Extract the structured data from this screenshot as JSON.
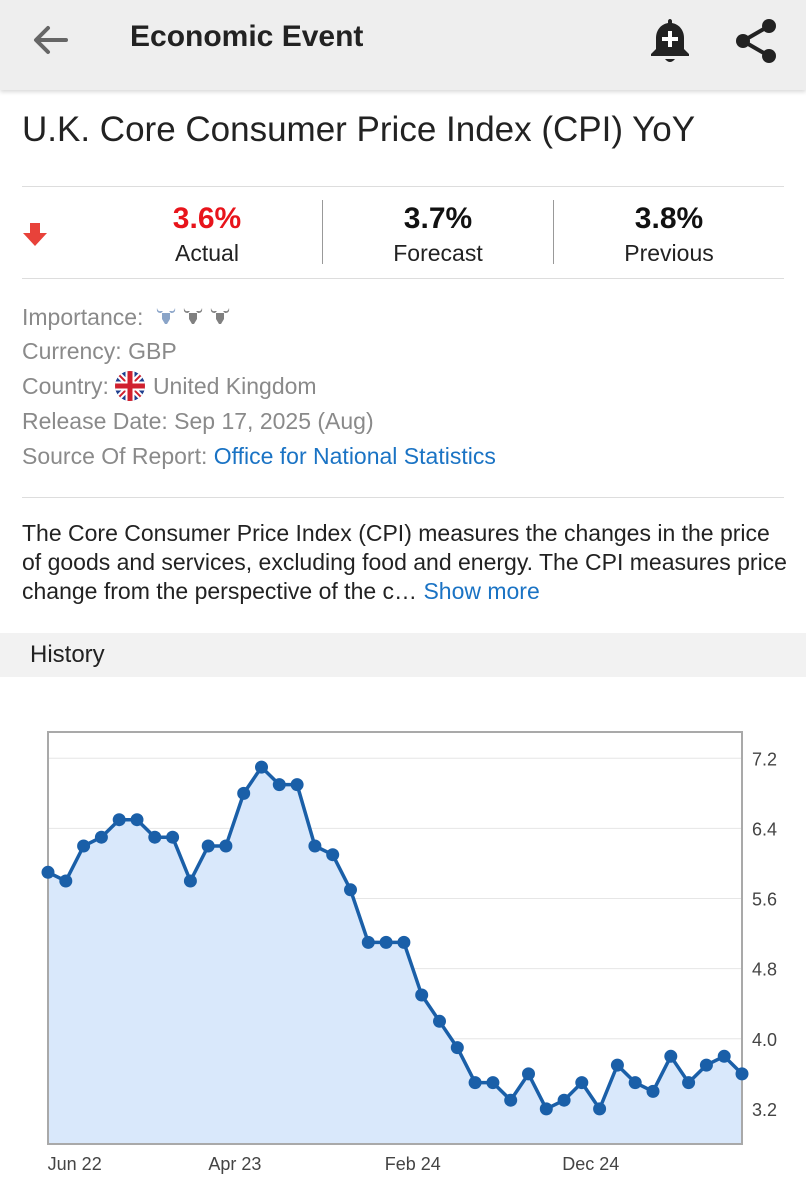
{
  "appbar": {
    "title": "Economic Event"
  },
  "event": {
    "title": "U.K. Core Consumer Price Index (CPI) YoY"
  },
  "stats": {
    "actual": {
      "value": "3.6%",
      "label": "Actual",
      "color": "#e8141b"
    },
    "forecast": {
      "value": "3.7%",
      "label": "Forecast"
    },
    "previous": {
      "value": "3.8%",
      "label": "Previous"
    },
    "direction_color": "#e8423a"
  },
  "info": {
    "importance_label": "Importance:",
    "importance_level": 1,
    "currency_label": "Currency:",
    "currency_value": "GBP",
    "country_label": "Country:",
    "country_value": "United Kingdom",
    "release_label": "Release Date:",
    "release_value": "Sep 17, 2025 (Aug)",
    "source_label": "Source Of Report:",
    "source_value": "Office for National Statistics"
  },
  "description": {
    "text": "The Core Consumer Price Index (CPI) measures the changes in the price of goods and services, excluding food and energy. The CPI measures price change from the perspective of the c…",
    "show_more": "Show more"
  },
  "history": {
    "label": "History"
  },
  "colors": {
    "line": "#1a5fa8",
    "fill": "#d9e8fb",
    "link": "#1a73c4"
  },
  "chart_data": {
    "type": "area",
    "x_tick_labels": [
      "Jun 22",
      "Apr 23",
      "Feb 24",
      "Dec 24"
    ],
    "y_tick_labels": [
      "7.2",
      "6.4",
      "5.6",
      "4.8",
      "4.0",
      "3.2"
    ],
    "ylim": [
      2.8,
      7.5
    ],
    "y_axis_position": "right",
    "grid": true,
    "series": [
      {
        "values": [
          5.9,
          5.8,
          6.2,
          6.3,
          6.5,
          6.5,
          6.3,
          6.3,
          5.8,
          6.2,
          6.2,
          6.8,
          7.1,
          6.9,
          6.9,
          6.2,
          6.1,
          5.7,
          5.1,
          5.1,
          5.1,
          4.5,
          4.2,
          3.9,
          3.5,
          3.5,
          3.3,
          3.6,
          3.2,
          3.3,
          3.5,
          3.2,
          3.7,
          3.5,
          3.4,
          3.8,
          3.5,
          3.7,
          3.8,
          3.6
        ]
      }
    ]
  }
}
